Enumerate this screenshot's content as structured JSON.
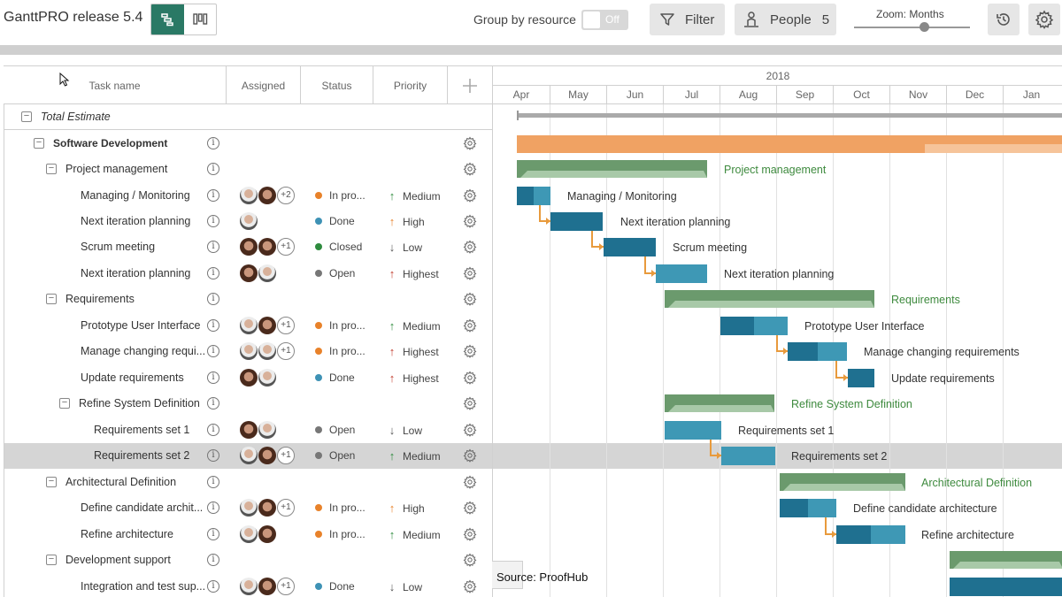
{
  "toolbar": {
    "app_title": "GanttPRO release 5.4",
    "group_by_resource_label": "Group by resource",
    "group_toggle_state": "Off",
    "filter_label": "Filter",
    "people_label": "People",
    "people_count": "5",
    "zoom_label": "Zoom: Months",
    "zoom_level": "Months"
  },
  "columns": {
    "task_name": "Task name",
    "assigned": "Assigned",
    "status": "Status",
    "priority": "Priority"
  },
  "timeline": {
    "year": "2018",
    "months": [
      "Apr",
      "May",
      "Jun",
      "Jul",
      "Aug",
      "Sep",
      "Oct",
      "Nov",
      "Dec",
      "Jan"
    ]
  },
  "rows": [
    {
      "name": "Total Estimate",
      "type": "total",
      "level": 0,
      "collapsible": true
    },
    {
      "name": "Software Development",
      "type": "group",
      "level": 1,
      "collapsible": true
    },
    {
      "name": "Project management",
      "type": "subgroup",
      "level": 2,
      "collapsible": true
    },
    {
      "name": "Managing / Monitoring",
      "type": "task",
      "level": 3,
      "assignees": [
        "m",
        "f"
      ],
      "more": "+2",
      "status": "In pro...",
      "status_color": "#e8822a",
      "priority": "Medium",
      "priority_dir": "up",
      "priority_color": "#2e8b3e"
    },
    {
      "name": "Next iteration planning",
      "type": "task",
      "level": 3,
      "assignees": [
        "m"
      ],
      "more": "",
      "status": "Done",
      "status_color": "#3e92b5",
      "priority": "High",
      "priority_dir": "up",
      "priority_color": "#e8822a"
    },
    {
      "name": "Scrum meeting",
      "type": "task",
      "level": 3,
      "assignees": [
        "f",
        "f"
      ],
      "more": "+1",
      "status": "Closed",
      "status_color": "#2e8b3e",
      "priority": "Low",
      "priority_dir": "down",
      "priority_color": "#555555"
    },
    {
      "name": "Next iteration planning",
      "type": "task",
      "level": 3,
      "assignees": [
        "f",
        "m"
      ],
      "more": "",
      "status": "Open",
      "status_color": "#777777",
      "priority": "Highest",
      "priority_dir": "up",
      "priority_color": "#c0392b"
    },
    {
      "name": "Requirements",
      "type": "subgroup",
      "level": 2,
      "collapsible": true
    },
    {
      "name": "Prototype User Interface",
      "type": "task",
      "level": 3,
      "assignees": [
        "m",
        "f"
      ],
      "more": "+1",
      "status": "In pro...",
      "status_color": "#e8822a",
      "priority": "Medium",
      "priority_dir": "up",
      "priority_color": "#2e8b3e"
    },
    {
      "name": "Manage changing requi...",
      "type": "task",
      "level": 3,
      "assignees": [
        "m",
        "m"
      ],
      "more": "+1",
      "status": "In pro...",
      "status_color": "#e8822a",
      "priority": "Highest",
      "priority_dir": "up",
      "priority_color": "#c0392b"
    },
    {
      "name": "Update requirements",
      "type": "task",
      "level": 3,
      "assignees": [
        "f",
        "m"
      ],
      "more": "",
      "status": "Done",
      "status_color": "#3e92b5",
      "priority": "Highest",
      "priority_dir": "up",
      "priority_color": "#c0392b"
    },
    {
      "name": "Refine System Definition",
      "type": "subgroup",
      "level": 3,
      "collapsible": true
    },
    {
      "name": "Requirements set 1",
      "type": "task",
      "level": 4,
      "assignees": [
        "f",
        "m"
      ],
      "more": "",
      "status": "Open",
      "status_color": "#777777",
      "priority": "Low",
      "priority_dir": "down",
      "priority_color": "#555555"
    },
    {
      "name": "Requirements set 2",
      "type": "task",
      "level": 4,
      "selected": true,
      "assignees": [
        "m",
        "f"
      ],
      "more": "+1",
      "status": "Open",
      "status_color": "#777777",
      "priority": "Medium",
      "priority_dir": "up",
      "priority_color": "#2e8b3e"
    },
    {
      "name": "Architectural Definition",
      "type": "subgroup",
      "level": 2,
      "collapsible": true
    },
    {
      "name": "Define candidate archit...",
      "type": "task",
      "level": 3,
      "assignees": [
        "m",
        "f"
      ],
      "more": "+1",
      "status": "In pro...",
      "status_color": "#e8822a",
      "priority": "High",
      "priority_dir": "up",
      "priority_color": "#e8822a"
    },
    {
      "name": "Refine architecture",
      "type": "task",
      "level": 3,
      "assignees": [
        "m",
        "f"
      ],
      "more": "",
      "status": "In pro...",
      "status_color": "#e8822a",
      "priority": "Medium",
      "priority_dir": "up",
      "priority_color": "#2e8b3e"
    },
    {
      "name": "Development support",
      "type": "subgroup",
      "level": 2,
      "collapsible": true
    },
    {
      "name": "Integration and test sup...",
      "type": "task",
      "level": 3,
      "assignees": [
        "m",
        "f"
      ],
      "more": "+1",
      "status": "Done",
      "status_color": "#3e92b5",
      "priority": "Low",
      "priority_dir": "down",
      "priority_color": "#555555"
    }
  ],
  "bar_labels": {
    "project_management": "Project management",
    "managing_monitoring": "Managing / Monitoring",
    "next_iteration_planning_1": "Next iteration planning",
    "scrum_meeting": "Scrum meeting",
    "next_iteration_planning_2": "Next iteration planning",
    "requirements": "Requirements",
    "prototype_ui": "Prototype User Interface",
    "manage_changing": "Manage changing requirements",
    "update_requirements": "Update requirements",
    "refine_system_definition": "Refine System Definition",
    "requirements_set_1": "Requirements set 1",
    "requirements_set_2": "Requirements set 2",
    "architectural_definition": "Architectural Definition",
    "define_candidate": "Define candidate architecture",
    "refine_architecture": "Refine architecture"
  },
  "source_caption": "Source: ProofHub",
  "colors": {
    "accent": "#2a7965",
    "group_bar": "#f0a263",
    "subgroup_bar": "#6b9a6d",
    "task_bar": "#1f7090",
    "task_bar_light": "#3e98b5",
    "link": "#e89a3c",
    "subgroup_text": "#3e8a3e"
  }
}
